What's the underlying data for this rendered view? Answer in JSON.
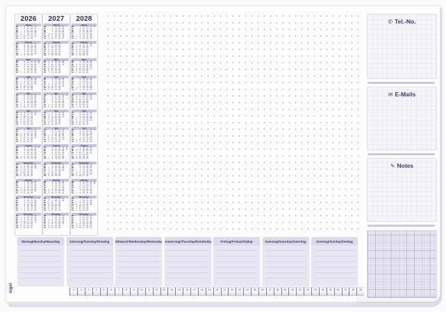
{
  "brand": {
    "name": "sigel"
  },
  "calendar": {
    "years": [
      "2026",
      "2027",
      "2028"
    ],
    "month_names": [
      "Januar",
      "Februar",
      "März",
      "April",
      "Mai",
      "Juni",
      "Juli",
      "August",
      "September",
      "Oktober",
      "November",
      "Dezember"
    ],
    "weekday_abbr": [
      "Mo",
      "Di",
      "Mi",
      "Do",
      "Fr",
      "Sa",
      "So"
    ]
  },
  "right_panel": {
    "sections": [
      {
        "label": "Tel.-No.",
        "icon": "phone-icon",
        "icon_glyph": "✆"
      },
      {
        "label": "E-Mails",
        "icon": "envelope-icon",
        "icon_glyph": "✉"
      },
      {
        "label": "Notes",
        "icon": "pencil-icon",
        "icon_glyph": "✎"
      }
    ]
  },
  "planner": {
    "day_headers": [
      "Montag/Monday/Maandag",
      "Dienstag/Tuesday/Dinsdag",
      "Mittwoch/Wednesday/Woensdag",
      "Donnerstag/Thursday/Donderdag",
      "Freitag/Friday/Vrijdag",
      "Samstag/Saturday/Zaterdag",
      "Sonntag/Sunday/Zondag"
    ]
  },
  "ruler": {
    "unit": "cm",
    "start": 1,
    "end": 39
  },
  "colors": {
    "ink_navy": "#2e2e66",
    "month_band": "#c5c3dc",
    "card_lavender": "#e7e6f2",
    "grid_line": "#d7d6e8",
    "dot": "#b3b3c2"
  }
}
